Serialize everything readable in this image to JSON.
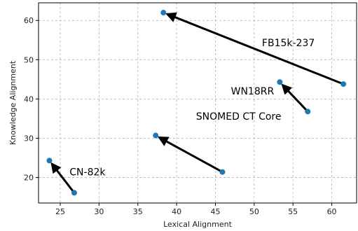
{
  "chart_data": {
    "type": "scatter",
    "xlabel": "Lexical Alignment",
    "ylabel": "Knowledge Alignment",
    "xlim": [
      22.2,
      63.2
    ],
    "ylim": [
      13.5,
      64.5
    ],
    "xticks": [
      25,
      30,
      35,
      40,
      45,
      50,
      55,
      60
    ],
    "yticks": [
      20,
      30,
      40,
      50,
      60
    ],
    "grid": true,
    "point_color": "#1f77b4",
    "arrow_color": "#000000",
    "series": [
      {
        "label": "FB15k-237",
        "from": [
          61.5,
          43.8
        ],
        "to": [
          38.3,
          62.0
        ],
        "label_pos": [
          51.0,
          53.4
        ]
      },
      {
        "label": "WN18RR",
        "from": [
          56.9,
          36.8
        ],
        "to": [
          53.3,
          44.3
        ],
        "label_pos": [
          47.0,
          41.1
        ]
      },
      {
        "label": "SNOMED CT Core",
        "from": [
          45.9,
          21.4
        ],
        "to": [
          37.3,
          30.7
        ],
        "label_pos": [
          42.5,
          34.7
        ]
      },
      {
        "label": "CN-82k",
        "from": [
          26.8,
          16.1
        ],
        "to": [
          23.6,
          24.3
        ],
        "label_pos": [
          26.2,
          20.5
        ]
      }
    ]
  }
}
